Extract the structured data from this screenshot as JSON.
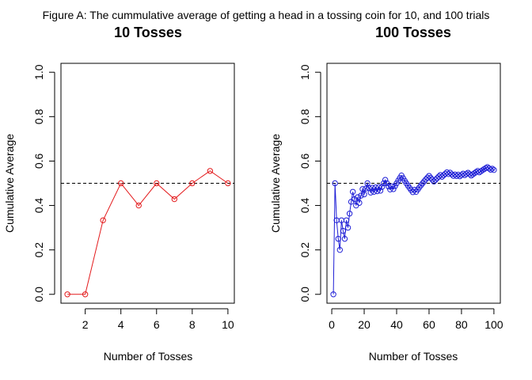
{
  "figure_title": "Figure A: The cummulative average of getting a head in a tossing coin for 10, and 100 trials",
  "chart_data": [
    {
      "type": "line",
      "title": "10 Tosses",
      "xlabel": "Number of Tosses",
      "ylabel": "Cumulative Average",
      "xlim": [
        1,
        10
      ],
      "ylim": [
        0,
        1
      ],
      "xticks": [
        2,
        4,
        6,
        8,
        10
      ],
      "yticks": [
        0.0,
        0.2,
        0.4,
        0.6,
        0.8,
        1.0
      ],
      "ytick_labels": [
        "0.0",
        "0.2",
        "0.4",
        "0.6",
        "0.8",
        "1.0"
      ],
      "reference_line": 0.5,
      "color": "#e31a1c",
      "x": [
        1,
        2,
        3,
        4,
        5,
        6,
        7,
        8,
        9,
        10
      ],
      "y": [
        0,
        0,
        0.3333,
        0.5,
        0.4,
        0.5,
        0.4286,
        0.5,
        0.5556,
        0.5
      ]
    },
    {
      "type": "line",
      "title": "100 Tosses",
      "xlabel": "Number of Tosses",
      "ylabel": "Cumulative Average",
      "xlim": [
        1,
        100
      ],
      "ylim": [
        0,
        1
      ],
      "xticks": [
        0,
        20,
        40,
        60,
        80,
        100
      ],
      "yticks": [
        0.0,
        0.2,
        0.4,
        0.6,
        0.8,
        1.0
      ],
      "ytick_labels": [
        "0.0",
        "0.2",
        "0.4",
        "0.6",
        "0.8",
        "1.0"
      ],
      "reference_line": 0.5,
      "color": "#1f1fd6",
      "x": [
        1,
        2,
        3,
        4,
        5,
        6,
        7,
        8,
        9,
        10,
        11,
        12,
        13,
        14,
        15,
        16,
        17,
        18,
        19,
        20,
        21,
        22,
        23,
        24,
        25,
        26,
        27,
        28,
        29,
        30,
        31,
        32,
        33,
        34,
        35,
        36,
        37,
        38,
        39,
        40,
        41,
        42,
        43,
        44,
        45,
        46,
        47,
        48,
        49,
        50,
        51,
        52,
        53,
        54,
        55,
        56,
        57,
        58,
        59,
        60,
        61,
        62,
        63,
        64,
        65,
        66,
        67,
        68,
        69,
        70,
        71,
        72,
        73,
        74,
        75,
        76,
        77,
        78,
        79,
        80,
        81,
        82,
        83,
        84,
        85,
        86,
        87,
        88,
        89,
        90,
        91,
        92,
        93,
        94,
        95,
        96,
        97,
        98,
        99,
        100
      ],
      "y": [
        0.0,
        0.5,
        0.3333,
        0.25,
        0.2,
        0.3333,
        0.2857,
        0.25,
        0.3333,
        0.3,
        0.3636,
        0.4167,
        0.4615,
        0.4286,
        0.4,
        0.4375,
        0.4118,
        0.4444,
        0.4737,
        0.45,
        0.4762,
        0.5,
        0.4783,
        0.4583,
        0.48,
        0.4615,
        0.4815,
        0.4643,
        0.4828,
        0.4667,
        0.4839,
        0.5,
        0.5152,
        0.5,
        0.4857,
        0.4722,
        0.4865,
        0.4737,
        0.4872,
        0.5,
        0.5122,
        0.5238,
        0.5349,
        0.5227,
        0.5111,
        0.5,
        0.4894,
        0.4792,
        0.4694,
        0.46,
        0.4706,
        0.4615,
        0.4717,
        0.4815,
        0.4909,
        0.5,
        0.5088,
        0.5172,
        0.5254,
        0.5333,
        0.5246,
        0.5161,
        0.5079,
        0.5156,
        0.5231,
        0.5303,
        0.5373,
        0.5294,
        0.5362,
        0.5429,
        0.5493,
        0.5417,
        0.5479,
        0.5405,
        0.5333,
        0.5395,
        0.5325,
        0.5385,
        0.5316,
        0.5375,
        0.5432,
        0.5366,
        0.5422,
        0.5476,
        0.5412,
        0.5349,
        0.5402,
        0.5455,
        0.5506,
        0.5556,
        0.5495,
        0.5543,
        0.5591,
        0.5638,
        0.5684,
        0.5729,
        0.567,
        0.5612,
        0.5657,
        0.56
      ]
    }
  ]
}
